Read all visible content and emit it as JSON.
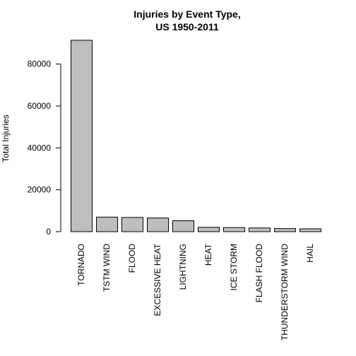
{
  "chart_data": {
    "type": "bar",
    "title": "Injuries by Event Type,\nUS 1950-2011",
    "title_lines": [
      "Injuries by Event Type,",
      "US 1950-2011"
    ],
    "xlabel": "",
    "ylabel": "Total Injuries",
    "categories": [
      "TORNADO",
      "TSTM WIND",
      "FLOOD",
      "EXCESSIVE HEAT",
      "LIGHTNING",
      "HEAT",
      "ICE STORM",
      "FLASH FLOOD",
      "THUNDERSTORM WIND",
      "HAIL"
    ],
    "values": [
      91346,
      6957,
      6789,
      6525,
      5230,
      2100,
      1975,
      1777,
      1488,
      1361
    ],
    "ylim": [
      0,
      91346
    ],
    "yticks": [
      0,
      20000,
      40000,
      60000,
      80000
    ],
    "bar_color": "#bebebe",
    "edge_color": "#000000",
    "grid": false,
    "legend": "none"
  }
}
